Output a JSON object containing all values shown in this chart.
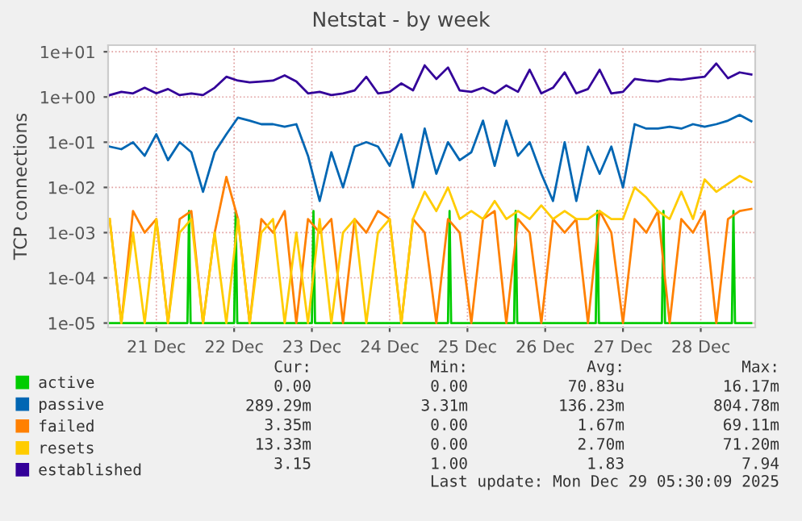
{
  "chart_data": {
    "type": "line",
    "title": "Netstat - by week",
    "ylabel": "TCP connections",
    "log": "y",
    "grid": true,
    "legend": "bottom",
    "marker": "none",
    "line_style": "solid",
    "xlim": [
      "2025-12-20T09:07",
      "2025-12-28T16:48"
    ],
    "xticks": [
      {
        "value": "2025-12-21",
        "label": "21 Dec"
      },
      {
        "value": "2025-12-22",
        "label": "22 Dec"
      },
      {
        "value": "2025-12-23",
        "label": "23 Dec"
      },
      {
        "value": "2025-12-24",
        "label": "24 Dec"
      },
      {
        "value": "2025-12-25",
        "label": "25 Dec"
      },
      {
        "value": "2025-12-26",
        "label": "26 Dec"
      },
      {
        "value": "2025-12-27",
        "label": "27 Dec"
      },
      {
        "value": "2025-12-28",
        "label": "28 Dec"
      }
    ],
    "ylim": [
      8e-06,
      14
    ],
    "yticks": [
      {
        "value": 1e-05,
        "label": "1e-05"
      },
      {
        "value": 0.0001,
        "label": "1e-04"
      },
      {
        "value": 0.001,
        "label": "1e-03"
      },
      {
        "value": 0.01,
        "label": "1e-02"
      },
      {
        "value": 0.1,
        "label": "1e-01"
      },
      {
        "value": 1,
        "label": "1e+00"
      },
      {
        "value": 10,
        "label": "1e+01"
      }
    ],
    "x": [
      "2025-12-20T09:36",
      "2025-12-20T13:12",
      "2025-12-20T16:48",
      "2025-12-20T20:24",
      "2025-12-21T00:00",
      "2025-12-21T03:36",
      "2025-12-21T07:12",
      "2025-12-21T10:48",
      "2025-12-21T14:24",
      "2025-12-21T18:00",
      "2025-12-21T21:36",
      "2025-12-22T01:12",
      "2025-12-22T04:48",
      "2025-12-22T08:24",
      "2025-12-22T12:00",
      "2025-12-22T15:36",
      "2025-12-22T19:12",
      "2025-12-22T22:48",
      "2025-12-23T02:24",
      "2025-12-23T06:00",
      "2025-12-23T09:36",
      "2025-12-23T13:12",
      "2025-12-23T16:48",
      "2025-12-23T20:24",
      "2025-12-24T00:00",
      "2025-12-24T03:36",
      "2025-12-24T07:12",
      "2025-12-24T10:48",
      "2025-12-24T14:24",
      "2025-12-24T18:00",
      "2025-12-24T21:36",
      "2025-12-25T01:12",
      "2025-12-25T04:48",
      "2025-12-25T08:24",
      "2025-12-25T12:00",
      "2025-12-25T15:36",
      "2025-12-25T19:12",
      "2025-12-25T22:48",
      "2025-12-26T02:24",
      "2025-12-26T06:00",
      "2025-12-26T09:36",
      "2025-12-26T13:12",
      "2025-12-26T16:48",
      "2025-12-26T20:24",
      "2025-12-27T00:00",
      "2025-12-27T03:36",
      "2025-12-27T07:12",
      "2025-12-27T10:48",
      "2025-12-27T14:24",
      "2025-12-27T18:00",
      "2025-12-27T21:36",
      "2025-12-28T01:12",
      "2025-12-28T04:48",
      "2025-12-28T08:24",
      "2025-12-28T12:00",
      "2025-12-28T15:36"
    ],
    "series": [
      {
        "name": "active",
        "color": "#00cc00",
        "x": [
          "2025-12-20T09:36",
          "2025-12-21T09:36",
          "2025-12-21T10:05",
          "2025-12-21T10:34",
          "2025-12-22T00:00",
          "2025-12-22T00:29",
          "2025-12-22T00:58",
          "2025-12-23T00:00",
          "2025-12-23T00:29",
          "2025-12-23T00:58",
          "2025-12-24T18:00",
          "2025-12-24T18:29",
          "2025-12-24T18:58",
          "2025-12-25T14:24",
          "2025-12-25T14:53",
          "2025-12-25T15:22",
          "2025-12-26T15:36",
          "2025-12-26T16:05",
          "2025-12-26T16:34",
          "2025-12-27T12:00",
          "2025-12-27T12:29",
          "2025-12-27T12:58",
          "2025-12-28T09:36",
          "2025-12-28T10:05",
          "2025-12-28T10:34",
          "2025-12-28T15:36"
        ],
        "values": [
          1e-05,
          1e-05,
          0.003,
          1e-05,
          1e-05,
          0.003,
          1e-05,
          1e-05,
          0.003,
          1e-05,
          1e-05,
          0.003,
          1e-05,
          1e-05,
          0.003,
          1e-05,
          1e-05,
          0.003,
          1e-05,
          1e-05,
          0.003,
          1e-05,
          1e-05,
          0.003,
          1e-05,
          1e-05
        ]
      },
      {
        "name": "passive",
        "color": "#0066b3",
        "values": [
          0.08,
          0.07,
          0.1,
          0.05,
          0.15,
          0.04,
          0.1,
          0.06,
          0.008,
          0.06,
          0.15,
          0.35,
          0.3,
          0.25,
          0.25,
          0.22,
          0.25,
          0.05,
          0.005,
          0.06,
          0.01,
          0.08,
          0.1,
          0.08,
          0.03,
          0.15,
          0.01,
          0.2,
          0.02,
          0.1,
          0.04,
          0.06,
          0.3,
          0.03,
          0.3,
          0.05,
          0.1,
          0.02,
          0.005,
          0.1,
          0.005,
          0.08,
          0.02,
          0.08,
          0.01,
          0.25,
          0.2,
          0.2,
          0.22,
          0.2,
          0.25,
          0.22,
          0.25,
          0.3,
          0.4,
          0.29
        ]
      },
      {
        "name": "failed",
        "color": "#ff8000",
        "values": [
          0.002,
          1e-05,
          0.003,
          0.001,
          0.002,
          1e-05,
          0.002,
          0.003,
          1e-05,
          0.001,
          0.017,
          0.002,
          1e-05,
          0.002,
          0.001,
          0.003,
          1e-05,
          0.002,
          0.001,
          0.002,
          1e-05,
          0.002,
          0.001,
          0.003,
          0.002,
          1e-05,
          0.002,
          0.001,
          1e-05,
          0.002,
          0.001,
          1e-05,
          0.002,
          0.003,
          1e-05,
          0.002,
          0.001,
          1e-05,
          0.002,
          0.001,
          0.002,
          1e-05,
          0.003,
          0.001,
          1e-05,
          0.002,
          0.001,
          0.003,
          1e-05,
          0.002,
          0.001,
          0.003,
          1e-05,
          0.002,
          0.003,
          0.00335
        ]
      },
      {
        "name": "resets",
        "color": "#ffcc00",
        "values": [
          0.002,
          1e-05,
          0.001,
          1e-05,
          0.002,
          1e-05,
          0.001,
          0.002,
          1e-05,
          0.001,
          1e-05,
          0.002,
          1e-05,
          0.001,
          0.002,
          1e-05,
          0.001,
          1e-05,
          0.002,
          1e-05,
          0.001,
          0.002,
          1e-05,
          0.001,
          0.002,
          1e-05,
          0.002,
          0.008,
          0.003,
          0.01,
          0.002,
          0.003,
          0.002,
          0.005,
          0.002,
          0.003,
          0.002,
          0.004,
          0.002,
          0.003,
          0.002,
          0.002,
          0.003,
          0.002,
          0.002,
          0.01,
          0.006,
          0.003,
          0.002,
          0.008,
          0.002,
          0.015,
          0.008,
          0.012,
          0.018,
          0.01333
        ]
      },
      {
        "name": "established",
        "color": "#330099",
        "values": [
          1.1,
          1.3,
          1.2,
          1.6,
          1.2,
          1.5,
          1.1,
          1.2,
          1.1,
          1.6,
          2.8,
          2.3,
          2.1,
          2.2,
          2.3,
          3.0,
          2.2,
          1.2,
          1.3,
          1.1,
          1.2,
          1.4,
          2.8,
          1.2,
          1.3,
          2.0,
          1.4,
          5.0,
          2.5,
          4.5,
          1.4,
          1.3,
          1.6,
          1.2,
          1.8,
          1.3,
          4.0,
          1.2,
          1.6,
          3.5,
          1.2,
          1.5,
          4.0,
          1.2,
          1.3,
          2.5,
          2.3,
          2.2,
          2.5,
          2.4,
          2.6,
          2.8,
          5.5,
          2.6,
          3.5,
          3.15
        ]
      }
    ],
    "annotations": [
      "Cur:",
      "Min:",
      "Avg:",
      "Max:",
      "0.00",
      "0.00",
      "70.83u",
      "16.17m",
      "289.29m",
      "3.31m",
      "136.23m",
      "804.78m",
      "3.35m",
      "0.00",
      "1.67m",
      "69.11m",
      "13.33m",
      "0.00",
      "2.70m",
      "71.20m",
      "3.15",
      "1.00",
      "1.83",
      "7.94",
      "Last update: Mon Dec 29 05:30:09 2025"
    ]
  }
}
